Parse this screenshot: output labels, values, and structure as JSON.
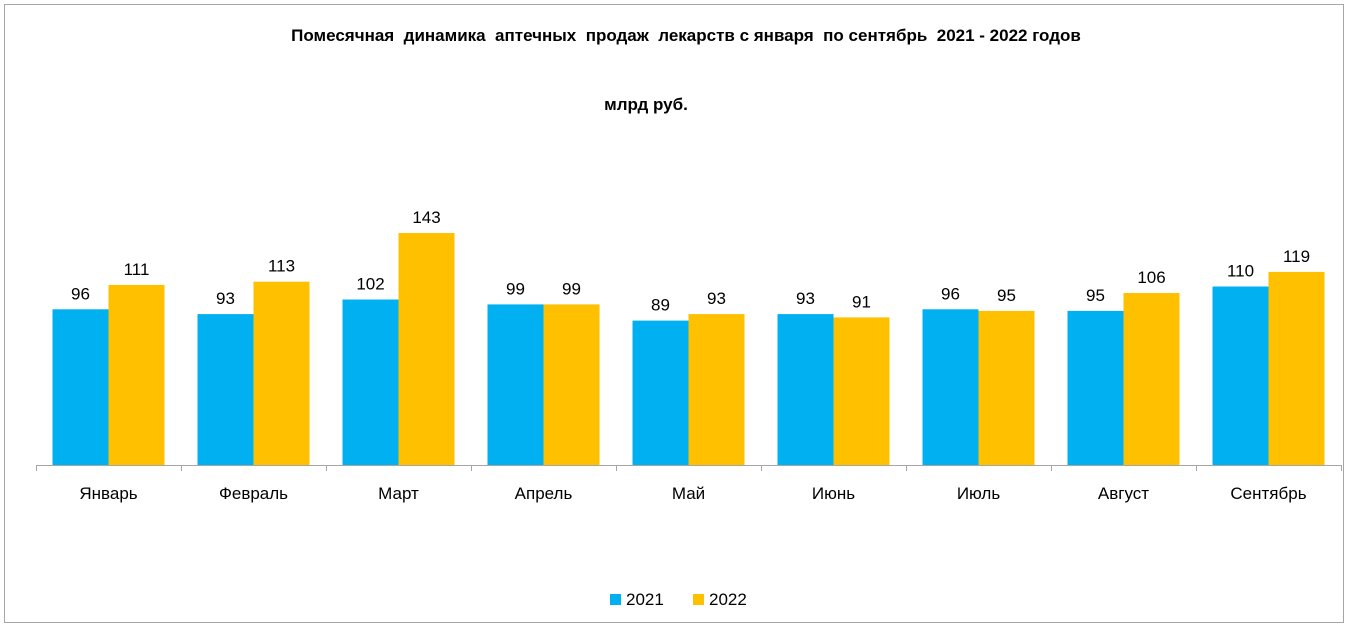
{
  "colors": {
    "series_2021": "#00b0f0",
    "series_2022": "#ffc000",
    "axis": "#a6a6a6"
  },
  "chart_data": {
    "type": "bar",
    "title": "Помесячная  динамика  аптечных  продаж  лекарств с января  по сентябрь  2021 - 2022 годов",
    "subtitle": "млрд руб.",
    "categories": [
      "Январь",
      "Февраль",
      "Март",
      "Апрель",
      "Май",
      "Июнь",
      "Июль",
      "Август",
      "Сентябрь"
    ],
    "series": [
      {
        "name": "2021",
        "values": [
          96,
          93,
          102,
          99,
          89,
          93,
          96,
          95,
          110
        ]
      },
      {
        "name": "2022",
        "values": [
          111,
          113,
          143,
          99,
          93,
          91,
          95,
          106,
          119
        ]
      }
    ],
    "ylim": [
      0,
      143
    ],
    "grid": false,
    "legend": "bottom"
  }
}
